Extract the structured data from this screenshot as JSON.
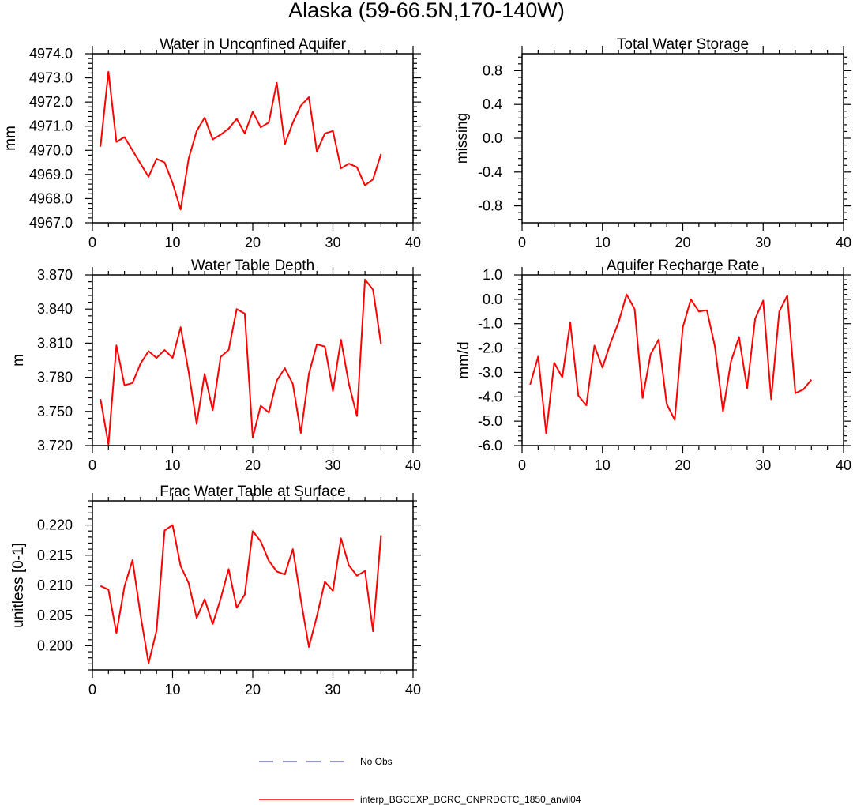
{
  "page_title": "Alaska (59-66.5N,170-140W)",
  "colors": {
    "model_line": "#ff0000",
    "obs_line": "#6b6bff",
    "axis": "#000000"
  },
  "legend": {
    "entries": [
      {
        "label": "No Obs",
        "style": "dashed",
        "color": "#6b6bff"
      },
      {
        "label": "interp_BGCEXP_BCRC_CNPRDCTC_1850_anvil04",
        "style": "solid",
        "color": "#ff0000"
      }
    ]
  },
  "chart_data": [
    {
      "id": "water-unconfined",
      "type": "line",
      "title": "Water in Unconfined Aquifer",
      "xlabel": "",
      "ylabel": "mm",
      "xlim": [
        0,
        40
      ],
      "ylim": [
        4967,
        4974
      ],
      "xticks": [
        0,
        10,
        20,
        30,
        40
      ],
      "xtick_labels": [
        "0",
        "10",
        "20",
        "30",
        "40"
      ],
      "yticks": [
        4967,
        4968,
        4969,
        4970,
        4971,
        4972,
        4973,
        4974
      ],
      "ytick_labels": [
        "4967.0",
        "4968.0",
        "4969.0",
        "4970.0",
        "4971.0",
        "4972.0",
        "4973.0",
        "4974.0"
      ],
      "series": [
        {
          "name": "interp_BGCEXP_BCRC_CNPRDCTC_1850_anvil04",
          "x": [
            1,
            2,
            3,
            4,
            5,
            6,
            7,
            8,
            9,
            10,
            11,
            12,
            13,
            14,
            15,
            16,
            17,
            18,
            19,
            20,
            21,
            22,
            23,
            24,
            25,
            26,
            27,
            28,
            29,
            30,
            31,
            32,
            33,
            34,
            35,
            36
          ],
          "values": [
            4970.15,
            4973.25,
            4970.35,
            4970.55,
            4970.0,
            4969.45,
            4968.9,
            4969.65,
            4969.5,
            4968.65,
            4967.55,
            4969.65,
            4970.8,
            4971.35,
            4970.45,
            4970.65,
            4970.9,
            4971.3,
            4970.7,
            4971.6,
            4970.95,
            4971.15,
            4972.8,
            4970.25,
            4971.15,
            4971.85,
            4972.2,
            4969.95,
            4970.7,
            4970.8,
            4969.25,
            4969.45,
            4969.3,
            4968.55,
            4968.8,
            4969.85
          ]
        }
      ]
    },
    {
      "id": "total-water-storage",
      "type": "line",
      "title": "Total Water Storage",
      "xlabel": "",
      "ylabel": "missing",
      "xlim": [
        0,
        40
      ],
      "ylim": [
        -1.0,
        1.0
      ],
      "xticks": [
        0,
        10,
        20,
        30,
        40
      ],
      "xtick_labels": [
        "0",
        "10",
        "20",
        "30",
        "40"
      ],
      "yticks": [
        -0.8,
        -0.4,
        0.0,
        0.4,
        0.8
      ],
      "ytick_labels": [
        "-0.8",
        "-0.4",
        "0.0",
        "0.4",
        "0.8"
      ],
      "series": []
    },
    {
      "id": "water-table-depth",
      "type": "line",
      "title": "Water Table Depth",
      "xlabel": "",
      "ylabel": "m",
      "xlim": [
        0,
        40
      ],
      "ylim": [
        3.72,
        3.87
      ],
      "xticks": [
        0,
        10,
        20,
        30,
        40
      ],
      "xtick_labels": [
        "0",
        "10",
        "20",
        "30",
        "40"
      ],
      "yticks": [
        3.72,
        3.75,
        3.78,
        3.81,
        3.84,
        3.87
      ],
      "ytick_labels": [
        "3.720",
        "3.750",
        "3.780",
        "3.810",
        "3.840",
        "3.870"
      ],
      "series": [
        {
          "name": "interp_BGCEXP_BCRC_CNPRDCTC_1850_anvil04",
          "x": [
            1,
            2,
            3,
            4,
            5,
            6,
            7,
            8,
            9,
            10,
            11,
            12,
            13,
            14,
            15,
            16,
            17,
            18,
            19,
            20,
            21,
            22,
            23,
            24,
            25,
            26,
            27,
            28,
            29,
            30,
            31,
            32,
            33,
            34,
            35,
            36
          ],
          "values": [
            3.761,
            3.721,
            3.808,
            3.773,
            3.775,
            3.792,
            3.803,
            3.797,
            3.804,
            3.797,
            3.824,
            3.785,
            3.739,
            3.783,
            3.751,
            3.798,
            3.804,
            3.84,
            3.836,
            3.727,
            3.755,
            3.749,
            3.777,
            3.788,
            3.774,
            3.731,
            3.783,
            3.809,
            3.807,
            3.768,
            3.813,
            3.774,
            3.746,
            3.866,
            3.857,
            3.809
          ]
        }
      ]
    },
    {
      "id": "aquifer-recharge",
      "type": "line",
      "title": "Aquifer Recharge Rate",
      "xlabel": "",
      "ylabel": "mm/d",
      "xlim": [
        0,
        40
      ],
      "ylim": [
        -6.0,
        1.0
      ],
      "xticks": [
        0,
        10,
        20,
        30,
        40
      ],
      "xtick_labels": [
        "0",
        "10",
        "20",
        "30",
        "40"
      ],
      "yticks": [
        -6,
        -5,
        -4,
        -3,
        -2,
        -1,
        0,
        1
      ],
      "ytick_labels": [
        "-6.0",
        "-5.0",
        "-4.0",
        "-3.0",
        "-2.0",
        "-1.0",
        "0.0",
        "1.0"
      ],
      "series": [
        {
          "name": "interp_BGCEXP_BCRC_CNPRDCTC_1850_anvil04",
          "x": [
            1,
            2,
            3,
            4,
            5,
            6,
            7,
            8,
            9,
            10,
            11,
            12,
            13,
            14,
            15,
            16,
            17,
            18,
            19,
            20,
            21,
            22,
            23,
            24,
            25,
            26,
            27,
            28,
            29,
            30,
            31,
            32,
            33,
            34,
            35,
            36
          ],
          "values": [
            -3.5,
            -2.35,
            -5.5,
            -2.6,
            -3.2,
            -0.95,
            -3.95,
            -4.35,
            -1.9,
            -2.8,
            -1.8,
            -0.95,
            0.2,
            -0.4,
            -4.05,
            -2.25,
            -1.65,
            -4.3,
            -4.95,
            -1.15,
            0.0,
            -0.5,
            -0.45,
            -1.95,
            -4.6,
            -2.55,
            -1.55,
            -3.65,
            -0.8,
            -0.05,
            -4.1,
            -0.5,
            0.15,
            -3.85,
            -3.7,
            -3.3
          ]
        }
      ]
    },
    {
      "id": "frac-water-table",
      "type": "line",
      "title": "Frac Water Table at Surface",
      "xlabel": "",
      "ylabel": "unitless [0-1]",
      "xlim": [
        0,
        40
      ],
      "ylim": [
        0.196,
        0.224
      ],
      "xticks": [
        0,
        10,
        20,
        30,
        40
      ],
      "xtick_labels": [
        "0",
        "10",
        "20",
        "30",
        "40"
      ],
      "yticks": [
        0.2,
        0.205,
        0.21,
        0.215,
        0.22
      ],
      "ytick_labels": [
        "0.200",
        "0.205",
        "0.210",
        "0.215",
        "0.220"
      ],
      "series": [
        {
          "name": "interp_BGCEXP_BCRC_CNPRDCTC_1850_anvil04",
          "x": [
            1,
            2,
            3,
            4,
            5,
            6,
            7,
            8,
            9,
            10,
            11,
            12,
            13,
            14,
            15,
            16,
            17,
            18,
            19,
            20,
            21,
            22,
            23,
            24,
            25,
            26,
            27,
            28,
            29,
            30,
            31,
            32,
            33,
            34,
            35,
            36
          ],
          "values": [
            0.2099,
            0.2093,
            0.2021,
            0.2098,
            0.2142,
            0.2051,
            0.1971,
            0.2025,
            0.2191,
            0.22,
            0.2132,
            0.2104,
            0.2046,
            0.2077,
            0.2036,
            0.2078,
            0.2127,
            0.2063,
            0.2085,
            0.219,
            0.2173,
            0.2141,
            0.2123,
            0.2118,
            0.216,
            0.2076,
            0.1998,
            0.2049,
            0.2106,
            0.2091,
            0.2178,
            0.2133,
            0.2116,
            0.2124,
            0.2024,
            0.2183
          ]
        }
      ]
    }
  ]
}
